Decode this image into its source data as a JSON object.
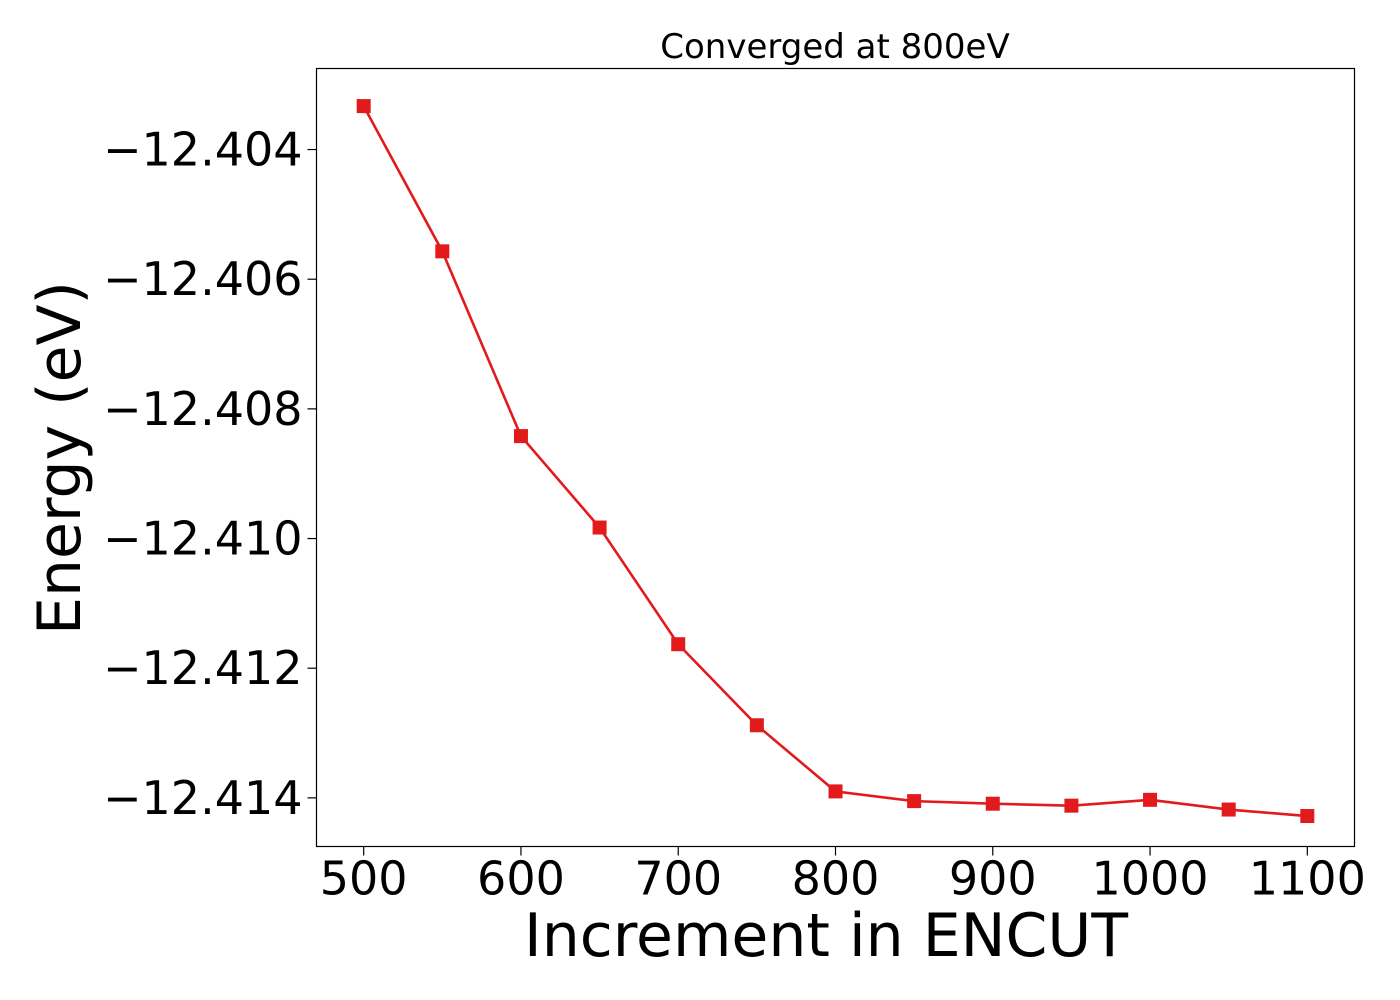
{
  "chart_data": {
    "type": "line",
    "title": "Converged at 800eV",
    "xlabel": "Increment in ENCUT",
    "ylabel": "Energy (eV)",
    "xlim": [
      470,
      1130
    ],
    "ylim": [
      -12.41475,
      -12.40275
    ],
    "xticks": [
      500,
      600,
      700,
      800,
      900,
      1000,
      1100
    ],
    "xtick_labels": [
      "500",
      "600",
      "700",
      "800",
      "900",
      "1000",
      "1100"
    ],
    "yticks": [
      -12.404,
      -12.406,
      -12.408,
      -12.41,
      -12.412,
      -12.414
    ],
    "ytick_labels": [
      "−12.404",
      "−12.406",
      "−12.408",
      "−12.410",
      "−12.412",
      "−12.414"
    ],
    "grid": false,
    "legend": "none",
    "series": [
      {
        "color": "#e31a1c",
        "marker": "square",
        "x": [
          500,
          550,
          600,
          650,
          700,
          750,
          800,
          850,
          900,
          950,
          1000,
          1050,
          1100
        ],
        "y": [
          -12.40333,
          -12.40557,
          -12.40842,
          -12.40983,
          -12.41163,
          -12.41288,
          -12.4139,
          -12.41405,
          -12.41409,
          -12.41412,
          -12.41403,
          -12.41418,
          -12.41428
        ]
      }
    ]
  }
}
